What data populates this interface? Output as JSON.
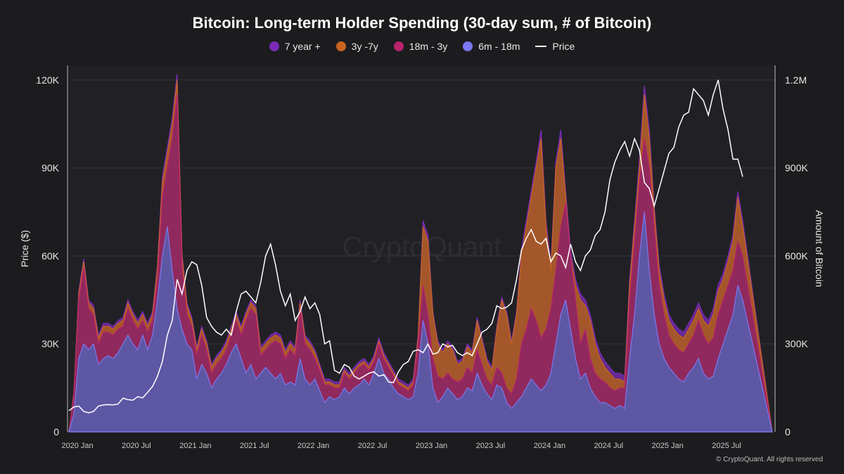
{
  "chart_data": {
    "type": "area",
    "title": "Bitcoin: Long-term Holder Spending (30-day sum, # of Bitcoin)",
    "ylabel_left": "Price ($)",
    "ylabel_right": "Amount of Bitcoin",
    "yticks_left": [
      "0",
      "30K",
      "60K",
      "90K",
      "120K"
    ],
    "yticks_left_values": [
      0,
      30000,
      60000,
      90000,
      120000
    ],
    "ylim_left": [
      0,
      125000
    ],
    "yticks_right": [
      "0",
      "300K",
      "600K",
      "900K",
      "1.2M"
    ],
    "yticks_right_values": [
      0,
      300000,
      600000,
      900000,
      1200000
    ],
    "ylim_right": [
      0,
      1250000
    ],
    "xticks": [
      "2020 Jan",
      "2020 Jul",
      "2021 Jan",
      "2021 Jul",
      "2022 Jan",
      "2022 Jul",
      "2023 Jan",
      "2023 Jul",
      "2024 Jan",
      "2024 Jul",
      "2025 Jan",
      "2025 Jul"
    ],
    "xtick_months": [
      0,
      6,
      12,
      18,
      24,
      30,
      36,
      42,
      48,
      54,
      60,
      66
    ],
    "x_months": [
      0,
      0.5,
      1,
      1.5,
      2,
      2.5,
      3,
      3.5,
      4,
      4.5,
      5,
      5.5,
      6,
      6.5,
      7,
      7.5,
      8,
      8.5,
      9,
      9.5,
      10,
      10.5,
      11,
      11.5,
      12,
      12.5,
      13,
      13.5,
      14,
      14.5,
      15,
      15.5,
      16,
      16.5,
      17,
      17.5,
      18,
      18.5,
      19,
      19.5,
      20,
      20.5,
      21,
      21.5,
      22,
      22.5,
      23,
      23.5,
      24,
      24.5,
      25,
      25.5,
      26,
      26.5,
      27,
      27.5,
      28,
      28.5,
      29,
      29.5,
      30,
      30.5,
      31,
      31.5,
      32,
      32.5,
      33,
      33.5,
      34,
      34.5,
      35,
      35.5,
      36,
      36.5,
      37,
      37.5,
      38,
      38.5,
      39,
      39.5,
      40,
      40.5,
      41,
      41.5,
      42,
      42.5,
      43,
      43.5,
      44,
      44.5,
      45,
      45.5,
      46,
      46.5,
      47,
      47.5,
      48,
      48.5,
      49,
      49.5,
      50,
      50.5,
      51,
      51.5,
      52,
      52.5,
      53,
      53.5,
      54,
      54.5,
      55,
      55.5,
      56,
      56.5,
      57,
      57.5,
      58,
      58.5,
      59,
      59.5,
      60,
      60.5,
      61,
      61.5,
      62,
      62.5,
      63,
      63.5,
      64,
      64.5,
      65,
      65.5,
      66,
      66.5,
      67,
      67.5,
      68,
      68.5,
      69,
      69.5,
      70,
      70.5,
      71,
      71.5
    ],
    "series": [
      {
        "name": "6m - 18m",
        "color": "#7b78f0",
        "fill": "#5c5aa8",
        "values": [
          0,
          60000,
          250000,
          300000,
          280000,
          300000,
          230000,
          250000,
          260000,
          250000,
          270000,
          300000,
          330000,
          300000,
          280000,
          330000,
          280000,
          330000,
          450000,
          600000,
          700000,
          550000,
          420000,
          350000,
          300000,
          280000,
          180000,
          230000,
          200000,
          150000,
          180000,
          200000,
          230000,
          270000,
          300000,
          250000,
          200000,
          230000,
          180000,
          200000,
          220000,
          200000,
          180000,
          200000,
          160000,
          170000,
          160000,
          250000,
          180000,
          160000,
          180000,
          140000,
          100000,
          120000,
          110000,
          120000,
          150000,
          130000,
          150000,
          160000,
          180000,
          160000,
          200000,
          250000,
          200000,
          180000,
          150000,
          130000,
          120000,
          110000,
          120000,
          200000,
          380000,
          300000,
          150000,
          100000,
          120000,
          150000,
          130000,
          110000,
          120000,
          150000,
          140000,
          200000,
          160000,
          130000,
          110000,
          160000,
          150000,
          100000,
          80000,
          100000,
          120000,
          150000,
          180000,
          160000,
          140000,
          160000,
          200000,
          300000,
          400000,
          450000,
          350000,
          250000,
          180000,
          200000,
          150000,
          120000,
          100000,
          100000,
          90000,
          80000,
          90000,
          80000,
          250000,
          400000,
          600000,
          750000,
          550000,
          400000,
          300000,
          250000,
          220000,
          200000,
          180000,
          170000,
          200000,
          220000,
          250000,
          200000,
          180000,
          190000,
          250000,
          300000,
          350000,
          400000,
          500000,
          450000
        ]
      },
      {
        "name": "18m - 3y",
        "color": "#b8236b",
        "fill": "#8f2760",
        "values": [
          0,
          120000,
          450000,
          560000,
          420000,
          400000,
          300000,
          340000,
          340000,
          330000,
          350000,
          360000,
          420000,
          380000,
          350000,
          380000,
          340000,
          380000,
          520000,
          800000,
          900000,
          1000000,
          1150000,
          560000,
          400000,
          360000,
          260000,
          330000,
          280000,
          200000,
          230000,
          250000,
          280000,
          330000,
          380000,
          330000,
          380000,
          420000,
          400000,
          260000,
          280000,
          300000,
          310000,
          300000,
          250000,
          280000,
          260000,
          420000,
          300000,
          280000,
          250000,
          210000,
          160000,
          160000,
          150000,
          150000,
          200000,
          180000,
          200000,
          220000,
          230000,
          210000,
          240000,
          300000,
          250000,
          220000,
          190000,
          160000,
          150000,
          140000,
          160000,
          300000,
          500000,
          400000,
          250000,
          190000,
          180000,
          200000,
          180000,
          170000,
          180000,
          220000,
          200000,
          280000,
          230000,
          180000,
          160000,
          220000,
          200000,
          150000,
          130000,
          180000,
          300000,
          350000,
          420000,
          380000,
          320000,
          350000,
          420000,
          550000,
          700000,
          780000,
          600000,
          450000,
          300000,
          350000,
          250000,
          200000,
          180000,
          170000,
          150000,
          140000,
          150000,
          150000,
          450000,
          650000,
          850000,
          1000000,
          900000,
          700000,
          500000,
          400000,
          330000,
          300000,
          280000,
          270000,
          300000,
          330000,
          380000,
          330000,
          300000,
          320000,
          400000,
          450000,
          500000,
          550000,
          650000,
          600000
        ]
      },
      {
        "name": "3y -7y",
        "color": "#c86420",
        "fill": "#a85a24",
        "values": [
          0,
          130000,
          470000,
          580000,
          440000,
          420000,
          320000,
          360000,
          360000,
          350000,
          370000,
          380000,
          440000,
          400000,
          370000,
          400000,
          360000,
          400000,
          560000,
          850000,
          950000,
          1050000,
          1200000,
          600000,
          430000,
          380000,
          280000,
          350000,
          300000,
          220000,
          250000,
          270000,
          300000,
          350000,
          400000,
          350000,
          400000,
          440000,
          420000,
          280000,
          300000,
          320000,
          330000,
          320000,
          270000,
          300000,
          280000,
          440000,
          320000,
          300000,
          270000,
          220000,
          170000,
          170000,
          160000,
          160000,
          210000,
          190000,
          210000,
          230000,
          240000,
          220000,
          250000,
          310000,
          260000,
          230000,
          200000,
          170000,
          160000,
          150000,
          170000,
          320000,
          700000,
          650000,
          400000,
          300000,
          270000,
          300000,
          280000,
          230000,
          240000,
          290000,
          270000,
          380000,
          310000,
          240000,
          210000,
          350000,
          450000,
          400000,
          300000,
          400000,
          600000,
          700000,
          800000,
          900000,
          1000000,
          700000,
          550000,
          900000,
          1000000,
          800000,
          600000,
          500000,
          450000,
          430000,
          380000,
          300000,
          250000,
          220000,
          200000,
          180000,
          180000,
          170000,
          500000,
          700000,
          900000,
          1150000,
          1000000,
          750000,
          550000,
          450000,
          380000,
          350000,
          330000,
          320000,
          350000,
          380000,
          420000,
          380000,
          360000,
          400000,
          480000,
          520000,
          580000,
          650000,
          800000,
          700000
        ]
      },
      {
        "name": "7 year +",
        "color": "#7a2bb5",
        "fill": "#6a2a9a",
        "values": [
          0,
          135000,
          480000,
          590000,
          450000,
          430000,
          330000,
          370000,
          370000,
          360000,
          380000,
          390000,
          450000,
          410000,
          380000,
          410000,
          370000,
          410000,
          570000,
          870000,
          970000,
          1070000,
          1220000,
          610000,
          440000,
          390000,
          290000,
          360000,
          310000,
          230000,
          260000,
          280000,
          310000,
          360000,
          410000,
          360000,
          410000,
          450000,
          430000,
          290000,
          310000,
          330000,
          340000,
          330000,
          280000,
          310000,
          290000,
          450000,
          330000,
          310000,
          280000,
          230000,
          180000,
          180000,
          170000,
          170000,
          220000,
          200000,
          220000,
          240000,
          250000,
          230000,
          260000,
          320000,
          270000,
          240000,
          210000,
          180000,
          170000,
          160000,
          180000,
          330000,
          720000,
          670000,
          410000,
          310000,
          280000,
          310000,
          290000,
          240000,
          250000,
          300000,
          280000,
          390000,
          320000,
          250000,
          220000,
          360000,
          460000,
          410000,
          310000,
          410000,
          620000,
          720000,
          820000,
          920000,
          1030000,
          720000,
          570000,
          920000,
          1030000,
          820000,
          620000,
          520000,
          470000,
          450000,
          400000,
          320000,
          270000,
          240000,
          220000,
          200000,
          200000,
          190000,
          520000,
          720000,
          930000,
          1180000,
          1030000,
          770000,
          570000,
          470000,
          400000,
          370000,
          350000,
          340000,
          370000,
          400000,
          440000,
          400000,
          380000,
          420000,
          500000,
          540000,
          600000,
          670000,
          820000,
          720000
        ]
      },
      {
        "name": "Price",
        "color": "#ffffff",
        "type": "line",
        "values": [
          7200,
          8500,
          8800,
          7000,
          6500,
          7000,
          8800,
          9200,
          9300,
          9200,
          9500,
          11500,
          11000,
          10800,
          12000,
          11600,
          13500,
          15500,
          19000,
          24000,
          33000,
          38000,
          52000,
          47000,
          55000,
          58000,
          57000,
          50000,
          39000,
          36000,
          34000,
          33000,
          35000,
          33000,
          41000,
          47000,
          48000,
          46000,
          44000,
          51000,
          60000,
          64000,
          57000,
          48000,
          43000,
          47000,
          38000,
          41000,
          46000,
          42000,
          44000,
          40000,
          30000,
          31000,
          21000,
          20000,
          23000,
          22000,
          19000,
          18000,
          19000,
          20000,
          20500,
          19000,
          19500,
          17000,
          16800,
          20500,
          23000,
          24000,
          27500,
          28000,
          27000,
          30000,
          26500,
          27000,
          30000,
          29000,
          29500,
          27000,
          26000,
          27000,
          26000,
          30000,
          34000,
          35000,
          37000,
          43000,
          42000,
          42500,
          44000,
          52000,
          62000,
          66000,
          69000,
          65000,
          64000,
          66000,
          58000,
          61000,
          60000,
          56000,
          64000,
          58000,
          55000,
          60000,
          62000,
          67000,
          69000,
          75000,
          86000,
          92000,
          96000,
          99000,
          94000,
          100000,
          96000,
          85000,
          83000,
          77000,
          83000,
          89000,
          95000,
          97000,
          104000,
          108000,
          109000,
          117000,
          115000,
          113000,
          108000,
          115000,
          120000,
          110000,
          103000,
          93000,
          93000,
          87000
        ]
      }
    ],
    "legend": [
      "7 year +",
      "3y -7y",
      "18m - 3y",
      "6m - 18m",
      "Price"
    ],
    "legend_placement": "top-center"
  },
  "legend_items": [
    {
      "label": "7 year +",
      "color": "#7a2bb5"
    },
    {
      "label": "3y -7y",
      "color": "#c86420"
    },
    {
      "label": "18m - 3y",
      "color": "#b8236b"
    },
    {
      "label": "6m - 18m",
      "color": "#7b78f0"
    },
    {
      "label": "Price",
      "color": "#ffffff"
    }
  ],
  "watermark": "CryptoQuant",
  "copyright": "© CryptoQuant. All rights reserved",
  "colors": {
    "background": "#1c1c1f",
    "plot_background": "#212125",
    "grid": "#33333a"
  }
}
